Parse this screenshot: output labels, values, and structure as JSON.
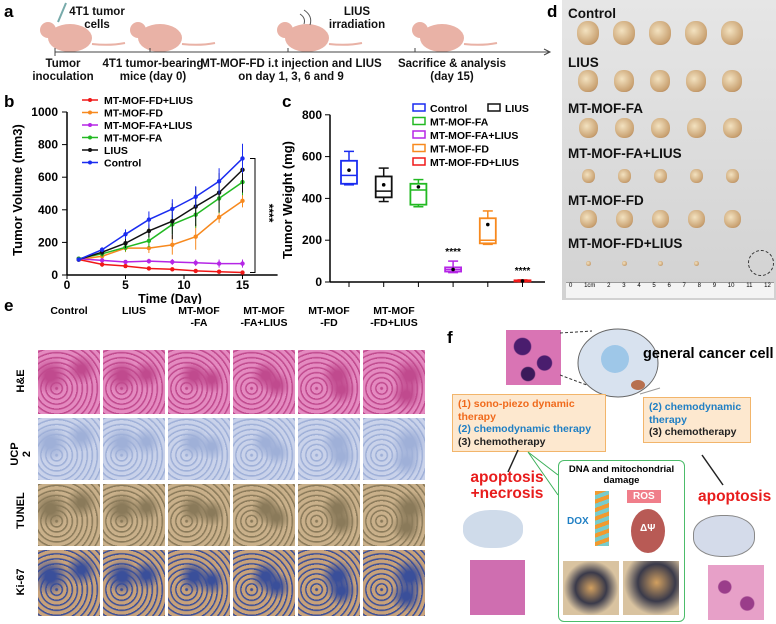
{
  "panels": {
    "a": "a",
    "b": "b",
    "c": "c",
    "d": "d",
    "e": "e",
    "f": "f"
  },
  "timeline": {
    "annotations": [
      "4T1 tumor cells",
      "LIUS irradiation"
    ],
    "steps": [
      "Tumor inoculation",
      "4T1 tumor-bearing mice (day 0)",
      "MT-MOF-FD i.t injection and LIUS on day 1, 3, 6 and 9",
      "Sacrifice & analysis (day 15)"
    ]
  },
  "colors": {
    "Control": "#1a2cf0",
    "LIUS": "#111111",
    "MT-MOF-FA": "#22b922",
    "MT-MOF-FA+LIUS": "#b526e6",
    "MT-MOF-FD": "#f7891e",
    "MT-MOF-FD+LIUS": "#f01818"
  },
  "chart_data": [
    {
      "type": "line",
      "xlabel": "Time (Day)",
      "ylabel": "Tumor Volume (mm3)",
      "xlim": [
        0,
        18
      ],
      "ylim": [
        0,
        1000
      ],
      "xticks": [
        0,
        5,
        10,
        15
      ],
      "yticks": [
        0,
        200,
        400,
        600,
        800,
        1000
      ],
      "legend": "top-left",
      "significance": "****",
      "x": [
        1,
        3,
        5,
        7,
        9,
        11,
        13,
        15
      ],
      "series": [
        {
          "name": "MT-MOF-FD+LIUS",
          "values": [
            95,
            65,
            55,
            40,
            35,
            25,
            20,
            15
          ],
          "err": [
            10,
            15,
            12,
            8,
            8,
            6,
            5,
            5
          ]
        },
        {
          "name": "MT-MOF-FD",
          "values": [
            95,
            115,
            165,
            165,
            185,
            235,
            355,
            455
          ],
          "err": [
            10,
            20,
            25,
            30,
            60,
            80,
            35,
            40
          ]
        },
        {
          "name": "MT-MOF-FA+LIUS",
          "values": [
            100,
            90,
            80,
            85,
            80,
            75,
            70,
            70
          ],
          "err": [
            10,
            12,
            12,
            15,
            18,
            20,
            25,
            25
          ]
        },
        {
          "name": "MT-MOF-FA",
          "values": [
            100,
            130,
            170,
            210,
            310,
            370,
            470,
            570
          ],
          "err": [
            10,
            20,
            25,
            40,
            60,
            80,
            90,
            80
          ]
        },
        {
          "name": "LIUS",
          "values": [
            95,
            140,
            195,
            270,
            330,
            420,
            505,
            645
          ],
          "err": [
            10,
            20,
            30,
            40,
            110,
            120,
            120,
            140
          ]
        },
        {
          "name": "Control",
          "values": [
            95,
            155,
            250,
            340,
            405,
            480,
            575,
            715
          ],
          "err": [
            10,
            15,
            30,
            50,
            60,
            65,
            80,
            90
          ]
        }
      ]
    },
    {
      "type": "box",
      "ylabel": "Tumor Weight (mg)",
      "ylim": [
        0,
        800
      ],
      "yticks": [
        0,
        200,
        400,
        600,
        800
      ],
      "legend": "top-right",
      "categories": [
        "Control",
        "LIUS",
        "MT-MOF-FA",
        "MT-MOF-FA+LIUS",
        "MT-MOF-FD",
        "MT-MOF-FD+LIUS"
      ],
      "boxes": [
        {
          "min": 465,
          "q1": 470,
          "median": 510,
          "q3": 580,
          "max": 625,
          "mean": 535
        },
        {
          "min": 385,
          "q1": 405,
          "median": 435,
          "q3": 505,
          "max": 545,
          "mean": 465
        },
        {
          "min": 360,
          "q1": 370,
          "median": 440,
          "q3": 470,
          "max": 490,
          "mean": 455
        },
        {
          "min": 45,
          "q1": 50,
          "median": 60,
          "q3": 70,
          "max": 100,
          "mean": 60,
          "sig": "****"
        },
        {
          "min": 180,
          "q1": 185,
          "median": 200,
          "q3": 305,
          "max": 340,
          "mean": 275
        },
        {
          "min": 2,
          "q1": 3,
          "median": 5,
          "q3": 8,
          "max": 10,
          "mean": 5,
          "sig": "****"
        }
      ]
    }
  ],
  "photo": {
    "groups": [
      "Control",
      "LIUS",
      "MT-MOF-FA",
      "MT-MOF-FA+LIUS",
      "MT-MOF-FD",
      "MT-MOF-FD+LIUS"
    ],
    "ruler": [
      "0",
      "1cm",
      "2",
      "3",
      "4",
      "5",
      "6",
      "7",
      "8",
      "9",
      "10",
      "11",
      "12"
    ]
  },
  "histology": {
    "columns": [
      "Control",
      "LIUS",
      "MT-MOF\n-FA",
      "MT-MOF\n-FA+LIUS",
      "MT-MOF\n-FD",
      "MT-MOF\n-FD+LIUS"
    ],
    "rows": [
      "H&E",
      "UCP 2",
      "TUNEL",
      "Ki-67"
    ]
  },
  "scheme": {
    "cell": "general cancer cell",
    "left_box": [
      "(1) sono-piezo dynamic therapy",
      "(2) chemodynamic therapy",
      "(3) chemotherapy"
    ],
    "right_box": [
      "(2) chemodynamic therapy",
      "(3) chemotherapy"
    ],
    "left_outcome": "apoptosis +necrosis",
    "right_outcome": "apoptosis",
    "damage_title": "DNA and mitochondrial damage",
    "dox": "DOX",
    "ros": "ROS",
    "psi": "ΔΨ"
  }
}
